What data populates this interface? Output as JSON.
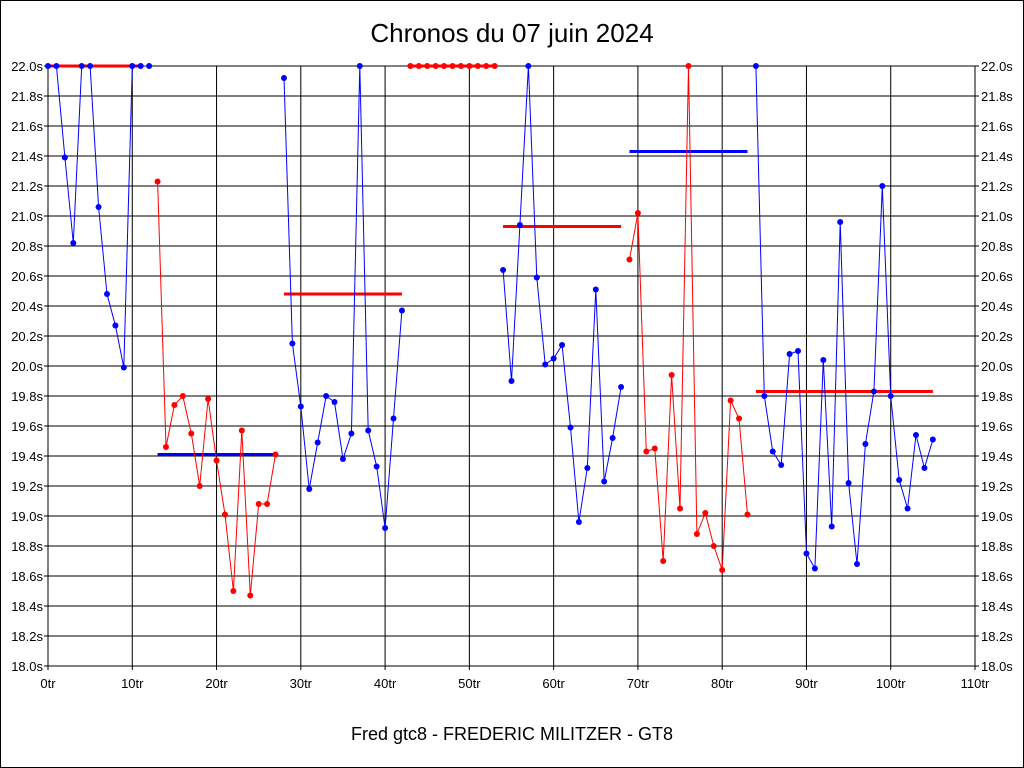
{
  "chart_data": {
    "type": "line",
    "title": "Chronos du 07 juin 2024",
    "xlabel": "Fred gtc8 - FREDERIC MILITZER - GT8",
    "ylabel": "",
    "xlim": [
      0,
      110
    ],
    "ylim": [
      18.0,
      22.0
    ],
    "grid": true,
    "x_ticks": [
      "0tr",
      "10tr",
      "20tr",
      "30tr",
      "40tr",
      "50tr",
      "60tr",
      "70tr",
      "80tr",
      "90tr",
      "100tr",
      "110tr"
    ],
    "y_ticks": [
      "18.0s",
      "18.2s",
      "18.4s",
      "18.6s",
      "18.8s",
      "19.0s",
      "19.2s",
      "19.4s",
      "19.6s",
      "19.8s",
      "20.0s",
      "20.2s",
      "20.4s",
      "20.6s",
      "20.8s",
      "21.0s",
      "21.2s",
      "21.4s",
      "21.6s",
      "21.8s",
      "22.0s"
    ],
    "series": [
      {
        "color": "#0000ff",
        "points": [
          [
            0,
            22.0
          ],
          [
            1,
            22.0
          ],
          [
            2,
            21.39
          ],
          [
            3,
            20.82
          ],
          [
            4,
            22.0
          ],
          [
            5,
            22.0
          ],
          [
            6,
            21.06
          ],
          [
            7,
            20.48
          ],
          [
            8,
            20.27
          ],
          [
            9,
            19.99
          ],
          [
            10,
            22.0
          ],
          [
            11,
            22.0
          ],
          [
            12,
            22.0
          ]
        ]
      },
      {
        "color": "#ff0000",
        "points": [
          [
            13,
            21.23
          ],
          [
            14,
            19.46
          ],
          [
            15,
            19.74
          ],
          [
            16,
            19.8
          ],
          [
            17,
            19.55
          ],
          [
            18,
            19.2
          ],
          [
            19,
            19.78
          ],
          [
            20,
            19.37
          ],
          [
            21,
            19.01
          ],
          [
            22,
            18.5
          ],
          [
            23,
            19.57
          ],
          [
            24,
            18.47
          ],
          [
            25,
            19.08
          ],
          [
            26,
            19.08
          ],
          [
            27,
            19.41
          ]
        ]
      },
      {
        "color": "#0000ff",
        "points": [
          [
            28,
            21.92
          ],
          [
            29,
            20.15
          ],
          [
            30,
            19.73
          ],
          [
            31,
            19.18
          ],
          [
            32,
            19.49
          ],
          [
            33,
            19.8
          ],
          [
            34,
            19.76
          ],
          [
            35,
            19.38
          ],
          [
            36,
            19.55
          ],
          [
            37,
            22.0
          ],
          [
            38,
            19.57
          ],
          [
            39,
            19.33
          ],
          [
            40,
            18.92
          ],
          [
            41,
            19.65
          ],
          [
            42,
            20.37
          ]
        ]
      },
      {
        "color": "#ff0000",
        "points": [
          [
            43,
            22.0
          ],
          [
            44,
            22.0
          ],
          [
            45,
            22.0
          ],
          [
            46,
            22.0
          ],
          [
            47,
            22.0
          ],
          [
            48,
            22.0
          ],
          [
            49,
            22.0
          ],
          [
            50,
            22.0
          ],
          [
            51,
            22.0
          ],
          [
            52,
            22.0
          ],
          [
            53,
            22.0
          ]
        ]
      },
      {
        "color": "#0000ff",
        "points": [
          [
            54,
            20.64
          ],
          [
            55,
            19.9
          ],
          [
            56,
            20.94
          ],
          [
            57,
            22.0
          ],
          [
            58,
            20.59
          ],
          [
            59,
            20.01
          ],
          [
            60,
            20.05
          ],
          [
            61,
            20.14
          ],
          [
            62,
            19.59
          ],
          [
            63,
            18.96
          ],
          [
            64,
            19.32
          ],
          [
            65,
            20.51
          ],
          [
            66,
            19.23
          ],
          [
            67,
            19.52
          ],
          [
            68,
            19.86
          ]
        ]
      },
      {
        "color": "#ff0000",
        "points": [
          [
            69,
            20.71
          ],
          [
            70,
            21.02
          ],
          [
            71,
            19.43
          ],
          [
            72,
            19.45
          ],
          [
            73,
            18.7
          ],
          [
            74,
            19.94
          ],
          [
            75,
            19.05
          ],
          [
            76,
            22.0
          ],
          [
            77,
            18.88
          ],
          [
            78,
            19.02
          ],
          [
            79,
            18.8
          ],
          [
            80,
            18.64
          ],
          [
            81,
            19.77
          ],
          [
            82,
            19.65
          ],
          [
            83,
            19.01
          ]
        ]
      },
      {
        "color": "#0000ff",
        "points": [
          [
            84,
            22.0
          ],
          [
            85,
            19.8
          ],
          [
            86,
            19.43
          ],
          [
            87,
            19.34
          ],
          [
            88,
            20.08
          ],
          [
            89,
            20.1
          ],
          [
            90,
            18.75
          ],
          [
            91,
            18.65
          ],
          [
            92,
            20.04
          ],
          [
            93,
            18.93
          ],
          [
            94,
            20.96
          ],
          [
            95,
            19.22
          ],
          [
            96,
            18.68
          ],
          [
            97,
            19.48
          ],
          [
            98,
            19.83
          ],
          [
            99,
            21.2
          ],
          [
            100,
            19.8
          ],
          [
            101,
            19.24
          ],
          [
            102,
            19.05
          ],
          [
            103,
            19.54
          ],
          [
            104,
            19.32
          ],
          [
            105,
            19.51
          ]
        ]
      }
    ],
    "averages": [
      {
        "color": "#ff0000",
        "x": [
          0,
          11
        ],
        "y": 22.0
      },
      {
        "color": "#0000ff",
        "x": [
          13,
          27
        ],
        "y": 19.41
      },
      {
        "color": "#ff0000",
        "x": [
          28,
          42
        ],
        "y": 20.48
      },
      {
        "color": "#ff0000",
        "x": [
          43,
          53
        ],
        "y": 22.0
      },
      {
        "color": "#ff0000",
        "x": [
          54,
          68
        ],
        "y": 20.93
      },
      {
        "color": "#0000ff",
        "x": [
          69,
          83
        ],
        "y": 21.43
      },
      {
        "color": "#ff0000",
        "x": [
          84,
          105
        ],
        "y": 19.83
      }
    ]
  }
}
